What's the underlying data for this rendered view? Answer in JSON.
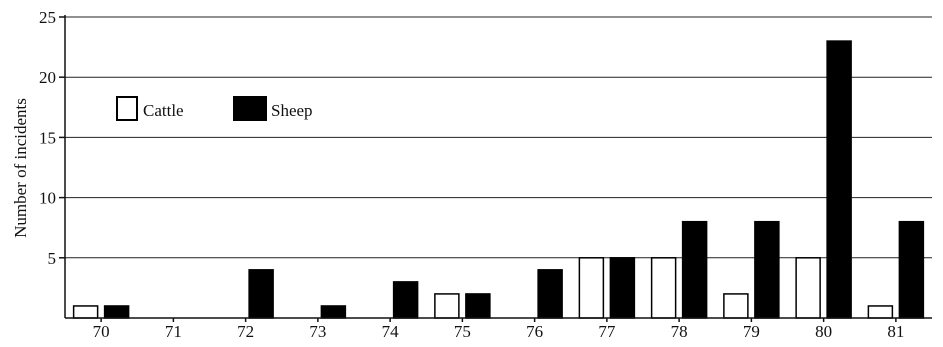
{
  "chart_data": {
    "type": "bar",
    "title": "",
    "xlabel": "",
    "ylabel": "Number of incidents",
    "categories": [
      "70",
      "71",
      "72",
      "73",
      "74",
      "75",
      "76",
      "77",
      "78",
      "79",
      "80",
      "81"
    ],
    "series": [
      {
        "name": "Cattle",
        "fill": "#ffffff",
        "values": [
          1,
          0,
          0,
          0,
          0,
          2,
          0,
          5,
          5,
          2,
          5,
          1
        ]
      },
      {
        "name": "Sheep",
        "fill": "#000000",
        "values": [
          1,
          0,
          4,
          1,
          3,
          2,
          4,
          5,
          8,
          8,
          23,
          8
        ]
      }
    ],
    "ylim": [
      0,
      25
    ],
    "yticks": [
      "5",
      "10",
      "15",
      "20",
      "25"
    ],
    "grid": "horizontal",
    "legend": {
      "placement": "upper-left",
      "entries": [
        "Cattle",
        "Sheep"
      ]
    }
  }
}
